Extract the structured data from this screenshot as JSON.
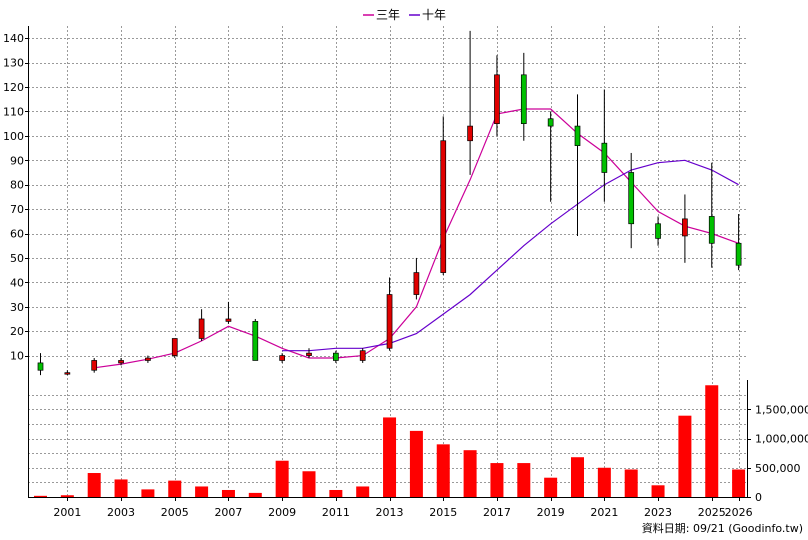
{
  "chart_data": {
    "type": "candlestick",
    "years": [
      2000,
      2001,
      2002,
      2003,
      2004,
      2005,
      2006,
      2007,
      2008,
      2009,
      2010,
      2011,
      2012,
      2013,
      2014,
      2015,
      2016,
      2017,
      2018,
      2019,
      2020,
      2021,
      2022,
      2023,
      2024,
      2025,
      2026
    ],
    "x_tick_labels": [
      "2001",
      "2003",
      "2005",
      "2007",
      "2009",
      "2011",
      "2013",
      "2015",
      "2017",
      "2019",
      "2021",
      "2023",
      "2025",
      "2026"
    ],
    "candles": [
      {
        "year": 2000,
        "open": 7,
        "close": 4,
        "high": 11,
        "low": 2
      },
      {
        "year": 2001,
        "open": 3,
        "close": 3,
        "high": 4,
        "low": 2
      },
      {
        "year": 2002,
        "open": 4,
        "close": 8,
        "high": 9,
        "low": 3
      },
      {
        "year": 2003,
        "open": 7,
        "close": 8,
        "high": 9,
        "low": 6
      },
      {
        "year": 2004,
        "open": 8,
        "close": 9,
        "high": 10,
        "low": 7
      },
      {
        "year": 2005,
        "open": 10,
        "close": 17,
        "high": 17,
        "low": 9
      },
      {
        "year": 2006,
        "open": 17,
        "close": 25,
        "high": 29,
        "low": 16
      },
      {
        "year": 2007,
        "open": 24,
        "close": 25,
        "high": 32,
        "low": 23
      },
      {
        "year": 2008,
        "open": 24,
        "close": 8,
        "high": 25,
        "low": 8
      },
      {
        "year": 2009,
        "open": 8,
        "close": 10,
        "high": 11,
        "low": 7
      },
      {
        "year": 2010,
        "open": 10,
        "close": 11,
        "high": 13,
        "low": 9
      },
      {
        "year": 2011,
        "open": 11,
        "close": 8,
        "high": 12,
        "low": 7
      },
      {
        "year": 2012,
        "open": 8,
        "close": 12,
        "high": 13,
        "low": 7
      },
      {
        "year": 2013,
        "open": 13,
        "close": 35,
        "high": 42,
        "low": 12
      },
      {
        "year": 2014,
        "open": 35,
        "close": 44,
        "high": 50,
        "low": 33
      },
      {
        "year": 2015,
        "open": 44,
        "close": 98,
        "high": 108,
        "low": 43
      },
      {
        "year": 2016,
        "open": 98,
        "close": 104,
        "high": 143,
        "low": 84
      },
      {
        "year": 2017,
        "open": 105,
        "close": 125,
        "high": 133,
        "low": 100
      },
      {
        "year": 2018,
        "open": 125,
        "close": 105,
        "high": 134,
        "low": 98
      },
      {
        "year": 2019,
        "open": 107,
        "close": 104,
        "high": 110,
        "low": 73
      },
      {
        "year": 2020,
        "open": 104,
        "close": 96,
        "high": 117,
        "low": 59
      },
      {
        "year": 2021,
        "open": 97,
        "close": 85,
        "high": 119,
        "low": 73
      },
      {
        "year": 2022,
        "open": 85,
        "close": 64,
        "high": 93,
        "low": 54
      },
      {
        "year": 2023,
        "open": 64,
        "close": 58,
        "high": 67,
        "low": 55
      },
      {
        "year": 2024,
        "open": 59,
        "close": 66,
        "high": 76,
        "low": 48
      },
      {
        "year": 2025,
        "open": 67,
        "close": 56,
        "high": 89,
        "low": 46
      },
      {
        "year": 2026,
        "open": 56,
        "close": 47,
        "high": 68,
        "low": 45
      }
    ],
    "series": [
      {
        "name": "三年",
        "color": "#cc0099",
        "points": [
          [
            2002,
            5
          ],
          [
            2003,
            6.5
          ],
          [
            2004,
            8.5
          ],
          [
            2005,
            11
          ],
          [
            2006,
            16
          ],
          [
            2007,
            22
          ],
          [
            2008,
            18
          ],
          [
            2009,
            13
          ],
          [
            2010,
            9
          ],
          [
            2011,
            9
          ],
          [
            2012,
            10
          ],
          [
            2013,
            17
          ],
          [
            2014,
            30
          ],
          [
            2015,
            58
          ],
          [
            2016,
            82
          ],
          [
            2017,
            109
          ],
          [
            2018,
            111
          ],
          [
            2019,
            111
          ],
          [
            2020,
            101
          ],
          [
            2021,
            93
          ],
          [
            2022,
            81
          ],
          [
            2023,
            69
          ],
          [
            2024,
            63
          ],
          [
            2025,
            60
          ],
          [
            2026,
            56
          ]
        ]
      },
      {
        "name": "十年",
        "color": "#6600cc",
        "points": [
          [
            2009,
            12
          ],
          [
            2010,
            12
          ],
          [
            2011,
            13
          ],
          [
            2012,
            13
          ],
          [
            2013,
            15
          ],
          [
            2014,
            19
          ],
          [
            2015,
            27
          ],
          [
            2016,
            35
          ],
          [
            2017,
            45
          ],
          [
            2018,
            55
          ],
          [
            2019,
            64
          ],
          [
            2020,
            72
          ],
          [
            2021,
            80
          ],
          [
            2022,
            86
          ],
          [
            2023,
            89
          ],
          [
            2024,
            90
          ],
          [
            2025,
            86
          ],
          [
            2026,
            80
          ]
        ]
      }
    ],
    "volume": [
      20000,
      30000,
      410000,
      300000,
      130000,
      280000,
      180000,
      120000,
      70000,
      620000,
      440000,
      120000,
      180000,
      1360000,
      1130000,
      900000,
      800000,
      580000,
      580000,
      330000,
      680000,
      500000,
      470000,
      200000,
      1390000,
      1910000,
      470000
    ],
    "price_ylim": [
      0,
      145
    ],
    "price_ticks": [
      10,
      20,
      30,
      40,
      50,
      60,
      70,
      80,
      90,
      100,
      110,
      120,
      130,
      140
    ],
    "volume_ylim": [
      0,
      2000000
    ],
    "volume_ticks": [
      {
        "v": 0,
        "label": "0"
      },
      {
        "v": 500000,
        "label": "500,000"
      },
      {
        "v": 1000000,
        "label": "1,000,000"
      },
      {
        "v": 1500000,
        "label": "1,500,000"
      }
    ],
    "up_color": "#e00000",
    "down_color": "#00c000",
    "volume_color": "#ff0000"
  },
  "legend": [
    {
      "label": "三年",
      "color": "#cc0099"
    },
    {
      "label": "十年",
      "color": "#6600cc"
    }
  ],
  "source_note": "資料日期: 09/21  (Goodinfo.tw)"
}
